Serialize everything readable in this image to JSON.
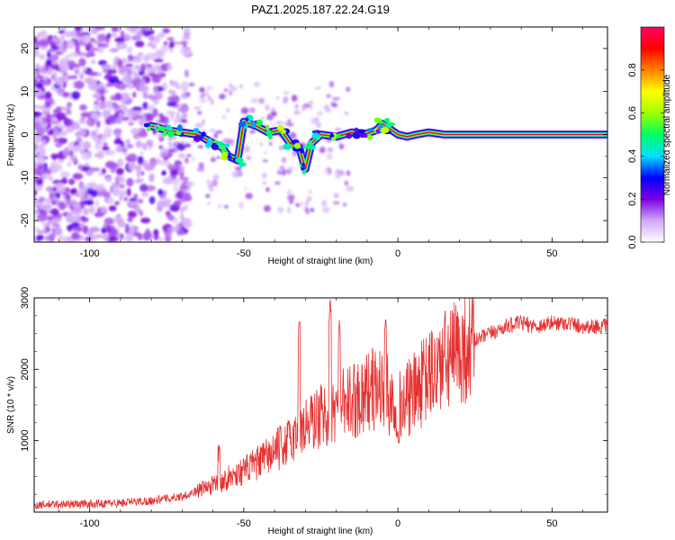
{
  "title": "PAZ1.2025.187.22.24.G19",
  "chart_data": [
    {
      "type": "heatmap",
      "xlabel": "Height of straight line (km)",
      "ylabel": "Frequency (Hz)",
      "xlim": [
        -118,
        68
      ],
      "ylim": [
        -25,
        25
      ],
      "x_ticks": [
        "-100",
        "-50",
        "0",
        "50"
      ],
      "x_tick_values": [
        -100,
        -50,
        0,
        50
      ],
      "y_ticks": [
        "-20",
        "-10",
        "0",
        "10",
        "20"
      ],
      "y_tick_values": [
        -20,
        -10,
        0,
        10,
        20
      ],
      "colorbar": {
        "label": "Normalized spectral amplitude",
        "range": [
          0,
          1
        ],
        "ticks": [
          "0.0",
          "0.2",
          "0.4",
          "0.6",
          "0.8"
        ],
        "tick_values": [
          0.0,
          0.2,
          0.4,
          0.6,
          0.8
        ],
        "colors": [
          "#ffffff",
          "#d0a8f8",
          "#7a00e0",
          "#0000ff",
          "#00e0ff",
          "#00ff60",
          "#a0ff00",
          "#ffff00",
          "#ff8000",
          "#ff0000",
          "#ff0060"
        ]
      },
      "ridge": [
        {
          "x": -80,
          "y": 2
        },
        {
          "x": -75,
          "y": 1
        },
        {
          "x": -70,
          "y": 0.5
        },
        {
          "x": -65,
          "y": 0
        },
        {
          "x": -60,
          "y": -2
        },
        {
          "x": -57,
          "y": -3
        },
        {
          "x": -55,
          "y": -5
        },
        {
          "x": -52,
          "y": -6
        },
        {
          "x": -50,
          "y": 3
        },
        {
          "x": -46,
          "y": 2
        },
        {
          "x": -42,
          "y": 0.5
        },
        {
          "x": -38,
          "y": 1
        },
        {
          "x": -35,
          "y": -2
        },
        {
          "x": -32,
          "y": -3
        },
        {
          "x": -30,
          "y": -8
        },
        {
          "x": -28,
          "y": -2
        },
        {
          "x": -25,
          "y": 0
        },
        {
          "x": -20,
          "y": -0.5
        },
        {
          "x": -15,
          "y": 0.5
        },
        {
          "x": -10,
          "y": 0.2
        },
        {
          "x": -7,
          "y": 1
        },
        {
          "x": -5,
          "y": 2.5
        },
        {
          "x": -3,
          "y": 1.5
        },
        {
          "x": 0,
          "y": 0
        },
        {
          "x": 3,
          "y": -0.5
        },
        {
          "x": 6,
          "y": 0
        },
        {
          "x": 10,
          "y": 0.5
        },
        {
          "x": 15,
          "y": 0
        },
        {
          "x": 25,
          "y": 0
        },
        {
          "x": 40,
          "y": 0
        },
        {
          "x": 55,
          "y": 0
        },
        {
          "x": 68,
          "y": 0
        }
      ]
    },
    {
      "type": "line",
      "xlabel": "Height of straight line (km)",
      "ylabel": "SNR (10 * v/v)",
      "xlim": [
        -118,
        68
      ],
      "ylim": [
        0,
        3000
      ],
      "x_ticks": [
        "-100",
        "-50",
        "0",
        "50"
      ],
      "x_tick_values": [
        -100,
        -50,
        0,
        50
      ],
      "y_ticks": [
        "1000",
        "2000",
        "3000"
      ],
      "y_tick_values": [
        1000,
        2000,
        3000
      ],
      "line_color": "#e53030",
      "x": [
        -118,
        -110,
        -100,
        -90,
        -80,
        -70,
        -65,
        -60,
        -55,
        -50,
        -45,
        -40,
        -35,
        -30,
        -25,
        -20,
        -15,
        -10,
        -5,
        0,
        5,
        10,
        15,
        20,
        25,
        30,
        35,
        40,
        45,
        50,
        55,
        60,
        68
      ],
      "values": [
        100,
        110,
        115,
        130,
        160,
        220,
        300,
        380,
        480,
        580,
        700,
        850,
        1000,
        1200,
        1350,
        1450,
        1550,
        1700,
        1750,
        1450,
        1650,
        1900,
        2100,
        2250,
        2400,
        2500,
        2600,
        2650,
        2600,
        2650,
        2650,
        2600,
        2600
      ],
      "spikes": [
        {
          "x": -58,
          "y": 950
        },
        {
          "x": -32,
          "y": 2700
        },
        {
          "x": -22,
          "y": 3000
        },
        {
          "x": -19,
          "y": 2700
        },
        {
          "x": -4,
          "y": 2700
        }
      ]
    }
  ]
}
